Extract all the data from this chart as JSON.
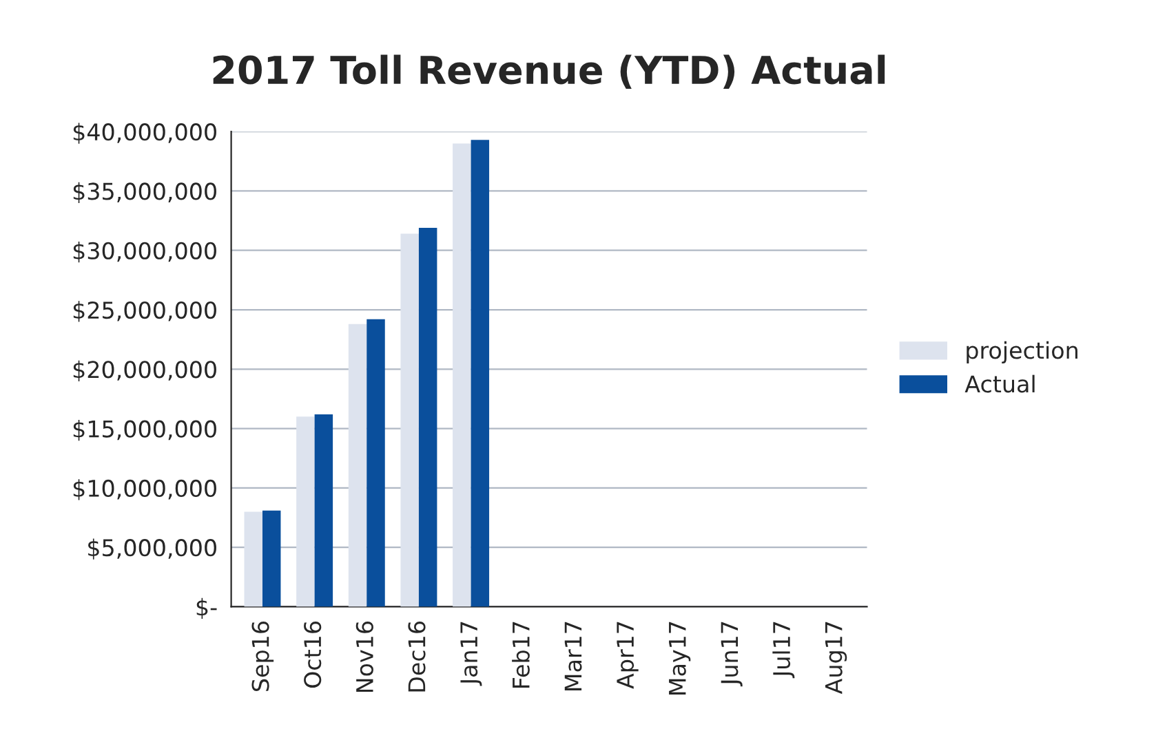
{
  "chart_data": {
    "type": "bar",
    "title": "2017 Toll Revenue (YTD) Actual",
    "categories": [
      "Sep16",
      "Oct16",
      "Nov16",
      "Dec16",
      "Jan17",
      "Feb17",
      "Mar17",
      "Apr17",
      "May17",
      "Jun17",
      "Jul17",
      "Aug17"
    ],
    "series": [
      {
        "name": "projection",
        "color": "#dde3ee",
        "values": [
          8000000,
          16000000,
          23800000,
          31400000,
          39000000,
          0,
          0,
          0,
          0,
          0,
          0,
          0
        ]
      },
      {
        "name": "Actual",
        "color": "#0a4f9c",
        "values": [
          8100000,
          16200000,
          24200000,
          31900000,
          39300000,
          0,
          0,
          0,
          0,
          0,
          0,
          0
        ]
      }
    ],
    "ylim": [
      0,
      40000000
    ],
    "yticks": [
      {
        "value": 0,
        "label": "$-"
      },
      {
        "value": 5000000,
        "label": "$5,000,000"
      },
      {
        "value": 10000000,
        "label": "$10,000,000"
      },
      {
        "value": 15000000,
        "label": "$15,000,000"
      },
      {
        "value": 20000000,
        "label": "$20,000,000"
      },
      {
        "value": 25000000,
        "label": "$25,000,000"
      },
      {
        "value": 30000000,
        "label": "$30,000,000"
      },
      {
        "value": 35000000,
        "label": "$35,000,000"
      },
      {
        "value": 40000000,
        "label": "$40,000,000"
      }
    ],
    "grid": "y",
    "legend": "right"
  }
}
